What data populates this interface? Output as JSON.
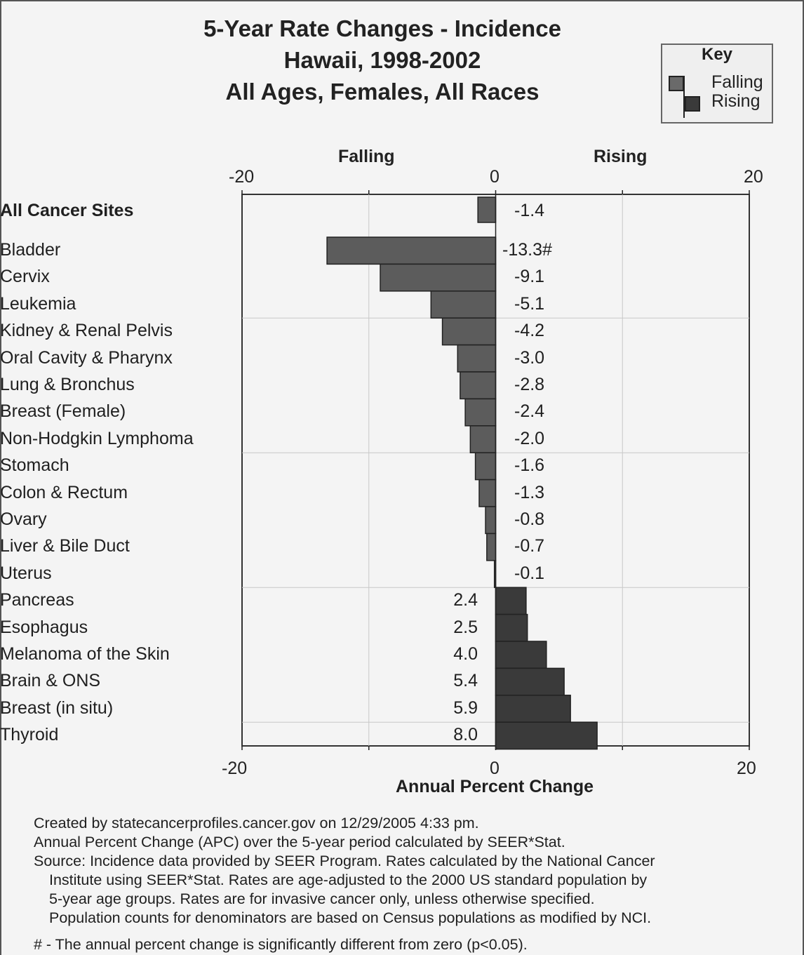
{
  "title": [
    "5-Year Rate Changes - Incidence",
    "Hawaii, 1998-2002",
    "All Ages, Females, All Races"
  ],
  "key": {
    "title": "Key",
    "falling": "Falling",
    "rising": "Rising"
  },
  "headers": {
    "falling": "Falling",
    "rising": "Rising"
  },
  "colors": {
    "falling": "#5c5c5c",
    "rising": "#3a3a3a",
    "background": "#f4f4f4"
  },
  "chart_data": {
    "type": "bar",
    "orientation": "horizontal",
    "xlim": [
      -20,
      20
    ],
    "xticks": [
      "-20",
      "0",
      "20"
    ],
    "xlabel": "Annual Percent Change",
    "summary": {
      "category": "All Cancer Sites",
      "value": -1.4,
      "label": "-1.4"
    },
    "categories": [
      "Bladder",
      "Cervix",
      "Leukemia",
      "Kidney & Renal Pelvis",
      "Oral Cavity & Pharynx",
      "Lung & Bronchus",
      "Breast (Female)",
      "Non-Hodgkin Lymphoma",
      "Stomach",
      "Colon & Rectum",
      "Ovary",
      "Liver & Bile Duct",
      "Uterus",
      "Pancreas",
      "Esophagus",
      "Melanoma of the Skin",
      "Brain & ONS",
      "Breast (in situ)",
      "Thyroid"
    ],
    "values": [
      -13.3,
      -9.1,
      -5.1,
      -4.2,
      -3.0,
      -2.8,
      -2.4,
      -2.0,
      -1.6,
      -1.3,
      -0.8,
      -0.7,
      -0.1,
      2.4,
      2.5,
      4.0,
      5.4,
      5.9,
      8.0
    ],
    "labels": [
      "-13.3#",
      "-9.1",
      "-5.1",
      "-4.2",
      "-3.0",
      "-2.8",
      "-2.4",
      "-2.0",
      "-1.6",
      "-1.3",
      "-0.8",
      "-0.7",
      "-0.1",
      "2.4",
      "2.5",
      "4.0",
      "5.4",
      "5.9",
      "8.0"
    ]
  },
  "notes": [
    "Created by statecancerprofiles.cancer.gov on 12/29/2005 4:33 pm.",
    "Annual Percent Change (APC) over the 5-year period calculated by  SEER*Stat.",
    "Source: Incidence data provided by SEER Program.  Rates calculated by the National Cancer",
    "Institute using SEER*Stat.  Rates are age-adjusted to the 2000 US standard population by",
    "5-year age groups.  Rates are for invasive cancer only, unless otherwise specified.",
    "Population counts for denominators are based on Census populations as modified by NCI.",
    "# - The annual percent change is significantly different from zero (p<0.05)."
  ]
}
